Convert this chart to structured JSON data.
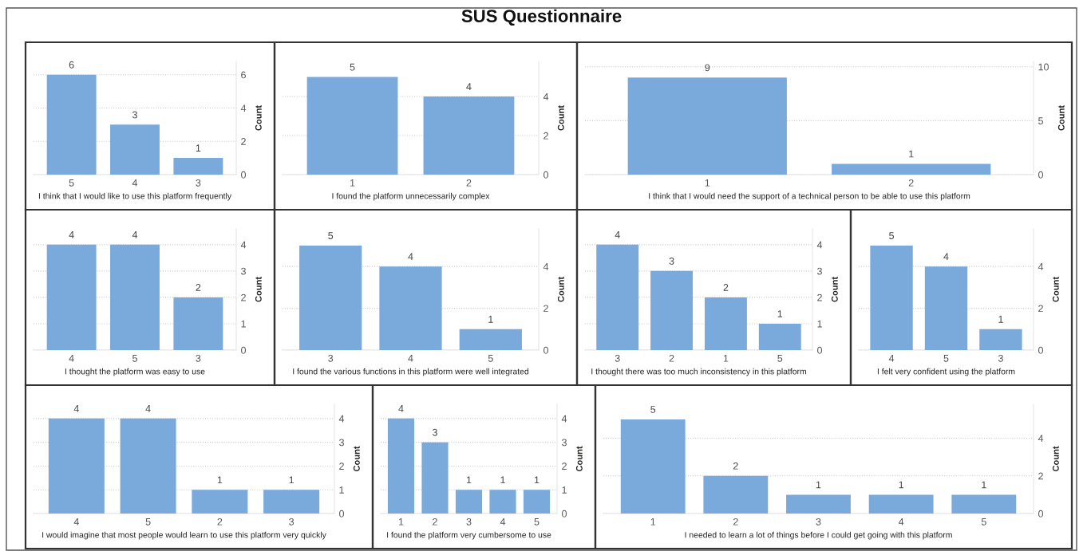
{
  "chart_data": [
    {
      "type": "other",
      "title": "SUS Questionnaire"
    },
    {
      "type": "bar",
      "categories": [
        "5",
        "4",
        "3"
      ],
      "values": [
        6,
        3,
        1
      ],
      "color": "#7aaadc",
      "xlabel": "I think that I would like to use this platform frequently",
      "ylabel": "Count",
      "ylim": [
        0,
        6.8
      ],
      "yticks": [
        0,
        2,
        4,
        6
      ],
      "grid": "y",
      "data_labels": true
    },
    {
      "type": "bar",
      "categories": [
        "1",
        "2"
      ],
      "values": [
        5,
        4
      ],
      "color": "#7aaadc",
      "xlabel": "I found the platform unnecessarily complex",
      "ylabel": "Count",
      "ylim": [
        0,
        5.8
      ],
      "yticks": [
        0,
        2,
        4
      ],
      "grid": "y",
      "data_labels": true
    },
    {
      "type": "bar",
      "categories": [
        "1",
        "2"
      ],
      "values": [
        9,
        1
      ],
      "color": "#7aaadc",
      "xlabel": "I think that I would need the support of a technical person to be able to use this platform",
      "ylabel": "Count",
      "ylim": [
        0,
        10.5
      ],
      "yticks": [
        0,
        5,
        10
      ],
      "grid": "y",
      "data_labels": true
    },
    {
      "type": "bar",
      "categories": [
        "4",
        "5",
        "3"
      ],
      "values": [
        4,
        4,
        2
      ],
      "color": "#7aaadc",
      "xlabel": "I thought the platform was easy to use",
      "ylabel": "Count",
      "ylim": [
        0,
        4.6
      ],
      "yticks": [
        0,
        1,
        2,
        3,
        4
      ],
      "grid": "y",
      "data_labels": true
    },
    {
      "type": "bar",
      "categories": [
        "3",
        "4",
        "5"
      ],
      "values": [
        5,
        4,
        1
      ],
      "color": "#7aaadc",
      "xlabel": "I found the various functions in this platform were well integrated",
      "ylabel": "Count",
      "ylim": [
        0,
        5.8
      ],
      "yticks": [
        0,
        2,
        4
      ],
      "grid": "y",
      "data_labels": true
    },
    {
      "type": "bar",
      "categories": [
        "3",
        "2",
        "1",
        "5"
      ],
      "values": [
        4,
        3,
        2,
        1
      ],
      "color": "#7aaadc",
      "xlabel": "I thought there was too much inconsistency in this platform",
      "ylabel": "Count",
      "ylim": [
        0,
        4.6
      ],
      "yticks": [
        0,
        1,
        2,
        3,
        4
      ],
      "grid": "y",
      "data_labels": true
    },
    {
      "type": "bar",
      "categories": [
        "4",
        "5",
        "3"
      ],
      "values": [
        5,
        4,
        1
      ],
      "color": "#7aaadc",
      "xlabel": "I felt very confident using the platform",
      "ylabel": "Count",
      "ylim": [
        0,
        5.8
      ],
      "yticks": [
        0,
        2,
        4
      ],
      "grid": "y",
      "data_labels": true
    },
    {
      "type": "bar",
      "categories": [
        "4",
        "5",
        "2",
        "3"
      ],
      "values": [
        4,
        4,
        1,
        1
      ],
      "color": "#7aaadc",
      "xlabel": "I would imagine that most people would learn to use this platform very quickly",
      "ylabel": "Count",
      "ylim": [
        0,
        4.6
      ],
      "yticks": [
        0,
        1,
        2,
        3,
        4
      ],
      "grid": "y",
      "data_labels": true
    },
    {
      "type": "bar",
      "categories": [
        "1",
        "2",
        "3",
        "4",
        "5"
      ],
      "values": [
        4,
        3,
        1,
        1,
        1
      ],
      "color": "#7aaadc",
      "xlabel": "I found the platform very cumbersome to use",
      "ylabel": "Count",
      "ylim": [
        0,
        4.6
      ],
      "yticks": [
        0,
        1,
        2,
        3,
        4
      ],
      "grid": "y",
      "data_labels": true
    },
    {
      "type": "bar",
      "categories": [
        "1",
        "2",
        "3",
        "4",
        "5"
      ],
      "values": [
        5,
        2,
        1,
        1,
        1
      ],
      "color": "#7aaadc",
      "xlabel": "I needed to learn a lot of things before I could get going with this platform",
      "ylabel": "Count",
      "ylim": [
        0,
        5.8
      ],
      "yticks": [
        0,
        2,
        4
      ],
      "grid": "y",
      "data_labels": true
    }
  ]
}
